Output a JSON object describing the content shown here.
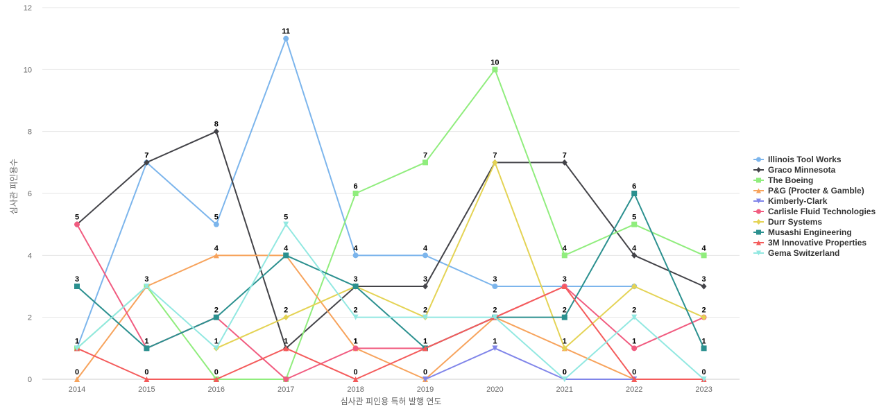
{
  "chart_data": {
    "type": "line",
    "title": "",
    "xlabel": "심사관 피인용 특허 발행 연도",
    "ylabel": "심사관 피인용수",
    "x": [
      "2014",
      "2015",
      "2016",
      "2017",
      "2018",
      "2019",
      "2020",
      "2021",
      "2022",
      "2023"
    ],
    "ylim": [
      0,
      12
    ],
    "yticks": [
      0,
      2,
      4,
      6,
      8,
      10,
      12
    ],
    "grid": true,
    "legend_position": "right",
    "series": [
      {
        "name": "Illinois Tool Works",
        "color": "#7cb5ec",
        "marker": "circle",
        "values": [
          1,
          7,
          5,
          11,
          4,
          4,
          3,
          3,
          3,
          null
        ],
        "labels": [
          1,
          7,
          5,
          11,
          4,
          4,
          3,
          null,
          null,
          null
        ]
      },
      {
        "name": "Graco Minnesota",
        "color": "#434348",
        "marker": "diamond",
        "values": [
          5,
          7,
          8,
          1,
          3,
          3,
          7,
          7,
          4,
          3
        ],
        "labels": [
          5,
          7,
          8,
          1,
          3,
          3,
          7,
          7,
          4,
          3
        ]
      },
      {
        "name": "The Boeing",
        "color": "#90ed7d",
        "marker": "square",
        "values": [
          1,
          3,
          0,
          0,
          6,
          7,
          10,
          4,
          5,
          4
        ],
        "labels": [
          null,
          null,
          null,
          null,
          6,
          7,
          10,
          4,
          5,
          4
        ]
      },
      {
        "name": "P&G (Procter & Gamble)",
        "color": "#f7a35c",
        "marker": "triangle",
        "values": [
          0,
          3,
          4,
          4,
          1,
          0,
          2,
          1,
          0,
          null
        ],
        "labels": [
          0,
          null,
          4,
          null,
          1,
          0,
          null,
          null,
          0,
          null
        ]
      },
      {
        "name": "Kimberly-Clark",
        "color": "#8085e9",
        "marker": "triangle-down",
        "values": [
          null,
          null,
          null,
          null,
          null,
          0,
          1,
          0,
          0,
          null
        ],
        "labels": [
          null,
          null,
          null,
          null,
          null,
          null,
          1,
          0,
          null,
          null
        ]
      },
      {
        "name": "Carlisle Fluid Technologies",
        "color": "#f15c80",
        "marker": "circle",
        "values": [
          5,
          1,
          2,
          0,
          1,
          1,
          2,
          3,
          1,
          2
        ],
        "labels": [
          null,
          null,
          null,
          null,
          1,
          null,
          null,
          3,
          1,
          null
        ]
      },
      {
        "name": "Durr Systems",
        "color": "#e4d354",
        "marker": "diamond",
        "values": [
          null,
          null,
          1,
          2,
          3,
          2,
          7,
          1,
          3,
          2
        ],
        "labels": [
          null,
          null,
          1,
          2,
          null,
          2,
          null,
          1,
          null,
          2
        ]
      },
      {
        "name": "Musashi Engineering",
        "color": "#2b908f",
        "marker": "square",
        "values": [
          3,
          1,
          2,
          4,
          3,
          1,
          2,
          2,
          6,
          1
        ],
        "labels": [
          3,
          1,
          2,
          4,
          null,
          1,
          null,
          2,
          6,
          1
        ]
      },
      {
        "name": "3M Innovative Properties",
        "color": "#f45b5b",
        "marker": "triangle",
        "values": [
          1,
          0,
          0,
          1,
          0,
          1,
          2,
          3,
          0,
          0
        ],
        "labels": [
          null,
          0,
          0,
          null,
          0,
          null,
          2,
          null,
          null,
          0
        ]
      },
      {
        "name": "Gema Switzerland",
        "color": "#91e8e1",
        "marker": "triangle-down",
        "values": [
          1,
          3,
          1,
          5,
          2,
          2,
          2,
          0,
          2,
          0
        ],
        "labels": [
          null,
          3,
          null,
          5,
          2,
          null,
          null,
          0,
          2,
          null
        ]
      }
    ]
  }
}
